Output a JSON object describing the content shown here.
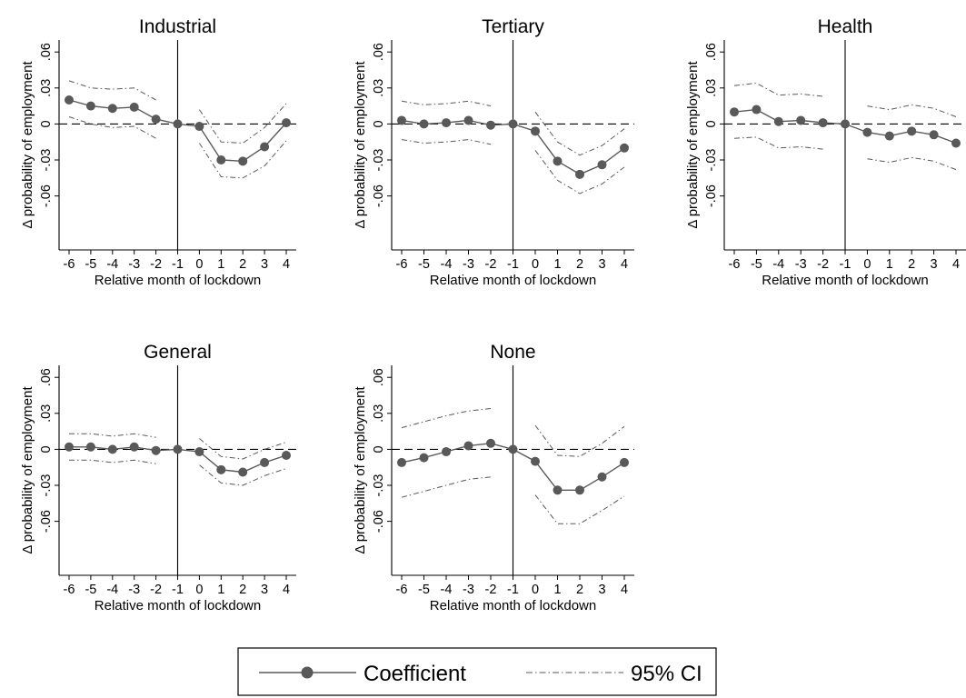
{
  "chart_data": [
    {
      "type": "line",
      "title": "Industrial",
      "xlabel": "Relative month of lockdown",
      "ylabel": "Δ probability of employment",
      "x": [
        -6,
        -5,
        -4,
        -3,
        -2,
        -1,
        0,
        1,
        2,
        3,
        4
      ],
      "x_ticks": [
        "-6",
        "-5",
        "-4",
        "-3",
        "-2",
        "-1",
        "0",
        "1",
        "2",
        "3",
        "4"
      ],
      "y_ticks": [
        {
          "value": 0.06,
          "label": ".06"
        },
        {
          "value": 0.03,
          "label": ".03"
        },
        {
          "value": 0,
          "label": "0"
        },
        {
          "value": -0.03,
          "label": "-.03"
        },
        {
          "value": -0.06,
          "label": "-.06"
        }
      ],
      "ylim": [
        -0.105,
        0.07
      ],
      "reference_x": -1,
      "series": [
        {
          "name": "Coefficient",
          "values": [
            0.02,
            0.015,
            0.013,
            0.014,
            0.004,
            0.0,
            -0.002,
            -0.03,
            -0.031,
            -0.019,
            0.001
          ]
        },
        {
          "name": "95% CI",
          "lower": [
            0.006,
            0.0,
            -0.003,
            -0.002,
            -0.012,
            null,
            -0.016,
            -0.044,
            -0.045,
            -0.035,
            -0.014
          ],
          "upper": [
            0.036,
            0.03,
            0.029,
            0.03,
            0.02,
            null,
            0.012,
            -0.015,
            -0.016,
            -0.003,
            0.017
          ]
        }
      ]
    },
    {
      "type": "line",
      "title": "Tertiary",
      "xlabel": "Relative month of lockdown",
      "ylabel": "Δ probability of employment",
      "x": [
        -6,
        -5,
        -4,
        -3,
        -2,
        -1,
        0,
        1,
        2,
        3,
        4
      ],
      "x_ticks": [
        "-6",
        "-5",
        "-4",
        "-3",
        "-2",
        "-1",
        "0",
        "1",
        "2",
        "3",
        "4"
      ],
      "y_ticks": [
        {
          "value": 0.06,
          "label": ".06"
        },
        {
          "value": 0.03,
          "label": ".03"
        },
        {
          "value": 0,
          "label": "0"
        },
        {
          "value": -0.03,
          "label": "-.03"
        },
        {
          "value": -0.06,
          "label": "-.06"
        }
      ],
      "ylim": [
        -0.105,
        0.07
      ],
      "reference_x": -1,
      "series": [
        {
          "name": "Coefficient",
          "values": [
            0.003,
            0.0,
            0.001,
            0.003,
            -0.001,
            0.0,
            -0.006,
            -0.031,
            -0.042,
            -0.034,
            -0.02
          ]
        },
        {
          "name": "95% CI",
          "lower": [
            -0.013,
            -0.016,
            -0.015,
            -0.013,
            -0.017,
            null,
            -0.022,
            -0.047,
            -0.058,
            -0.05,
            -0.036
          ],
          "upper": [
            0.019,
            0.016,
            0.017,
            0.019,
            0.015,
            null,
            0.01,
            -0.015,
            -0.026,
            -0.018,
            -0.004
          ]
        }
      ]
    },
    {
      "type": "line",
      "title": "Health",
      "xlabel": "Relative month of lockdown",
      "ylabel": "Δ probability of employment",
      "x": [
        -6,
        -5,
        -4,
        -3,
        -2,
        -1,
        0,
        1,
        2,
        3,
        4
      ],
      "x_ticks": [
        "-6",
        "-5",
        "-4",
        "-3",
        "-2",
        "-1",
        "0",
        "1",
        "2",
        "3",
        "4"
      ],
      "y_ticks": [
        {
          "value": 0.06,
          "label": ".06"
        },
        {
          "value": 0.03,
          "label": ".03"
        },
        {
          "value": 0,
          "label": "0"
        },
        {
          "value": -0.03,
          "label": "-.03"
        },
        {
          "value": -0.06,
          "label": "-.06"
        }
      ],
      "ylim": [
        -0.105,
        0.07
      ],
      "reference_x": -1,
      "series": [
        {
          "name": "Coefficient",
          "values": [
            0.01,
            0.012,
            0.002,
            0.003,
            0.001,
            0.0,
            -0.007,
            -0.01,
            -0.006,
            -0.009,
            -0.016
          ]
        },
        {
          "name": "95% CI",
          "lower": [
            -0.012,
            -0.011,
            -0.02,
            -0.019,
            -0.021,
            null,
            -0.029,
            -0.032,
            -0.028,
            -0.031,
            -0.038
          ],
          "upper": [
            0.032,
            0.034,
            0.024,
            0.025,
            0.023,
            null,
            0.015,
            0.012,
            0.016,
            0.013,
            0.006
          ]
        }
      ]
    },
    {
      "type": "line",
      "title": "General",
      "xlabel": "Relative month of lockdown",
      "ylabel": "Δ probability of employment",
      "x": [
        -6,
        -5,
        -4,
        -3,
        -2,
        -1,
        0,
        1,
        2,
        3,
        4
      ],
      "x_ticks": [
        "-6",
        "-5",
        "-4",
        "-3",
        "-2",
        "-1",
        "0",
        "1",
        "2",
        "3",
        "4"
      ],
      "y_ticks": [
        {
          "value": 0.06,
          "label": ".06"
        },
        {
          "value": 0.03,
          "label": ".03"
        },
        {
          "value": 0,
          "label": "0"
        },
        {
          "value": -0.03,
          "label": "-.03"
        },
        {
          "value": -0.06,
          "label": "-.06"
        }
      ],
      "ylim": [
        -0.105,
        0.07
      ],
      "reference_x": -1,
      "series": [
        {
          "name": "Coefficient",
          "values": [
            0.002,
            0.002,
            0.0,
            0.002,
            -0.001,
            0.0,
            -0.002,
            -0.017,
            -0.019,
            -0.011,
            -0.005
          ]
        },
        {
          "name": "95% CI",
          "lower": [
            -0.009,
            -0.009,
            -0.011,
            -0.009,
            -0.012,
            null,
            -0.013,
            -0.028,
            -0.03,
            -0.022,
            -0.016
          ],
          "upper": [
            0.013,
            0.013,
            0.011,
            0.013,
            0.01,
            null,
            0.009,
            -0.006,
            -0.008,
            0.0,
            0.006
          ]
        }
      ]
    },
    {
      "type": "line",
      "title": "None",
      "xlabel": "Relative month of lockdown",
      "ylabel": "Δ probability of employment",
      "x": [
        -6,
        -5,
        -4,
        -3,
        -2,
        -1,
        0,
        1,
        2,
        3,
        4
      ],
      "x_ticks": [
        "-6",
        "-5",
        "-4",
        "-3",
        "-2",
        "-1",
        "0",
        "1",
        "2",
        "3",
        "4"
      ],
      "y_ticks": [
        {
          "value": 0.06,
          "label": ".06"
        },
        {
          "value": 0.03,
          "label": ".03"
        },
        {
          "value": 0,
          "label": "0"
        },
        {
          "value": -0.03,
          "label": "-.03"
        },
        {
          "value": -0.06,
          "label": "-.06"
        }
      ],
      "ylim": [
        -0.105,
        0.07
      ],
      "reference_x": -1,
      "series": [
        {
          "name": "Coefficient",
          "values": [
            -0.011,
            -0.007,
            -0.002,
            0.003,
            0.005,
            0.0,
            -0.01,
            -0.034,
            -0.034,
            -0.023,
            -0.011
          ]
        },
        {
          "name": "95% CI",
          "lower": [
            -0.04,
            -0.035,
            -0.03,
            -0.025,
            -0.023,
            null,
            -0.038,
            -0.062,
            -0.062,
            -0.051,
            -0.039
          ],
          "upper": [
            0.018,
            0.023,
            0.028,
            0.032,
            0.034,
            null,
            0.02,
            -0.005,
            -0.006,
            0.005,
            0.019
          ]
        }
      ]
    }
  ],
  "legend": {
    "items": [
      {
        "label": "Coefficient",
        "marker": "line-with-dot"
      },
      {
        "label": "95% CI",
        "marker": "dash-dot-line"
      }
    ],
    "placement": "bottom-center"
  },
  "colors": {
    "coefficient": "#595959",
    "ci": "#595959",
    "axis": "#000000",
    "reference": "#000000"
  }
}
